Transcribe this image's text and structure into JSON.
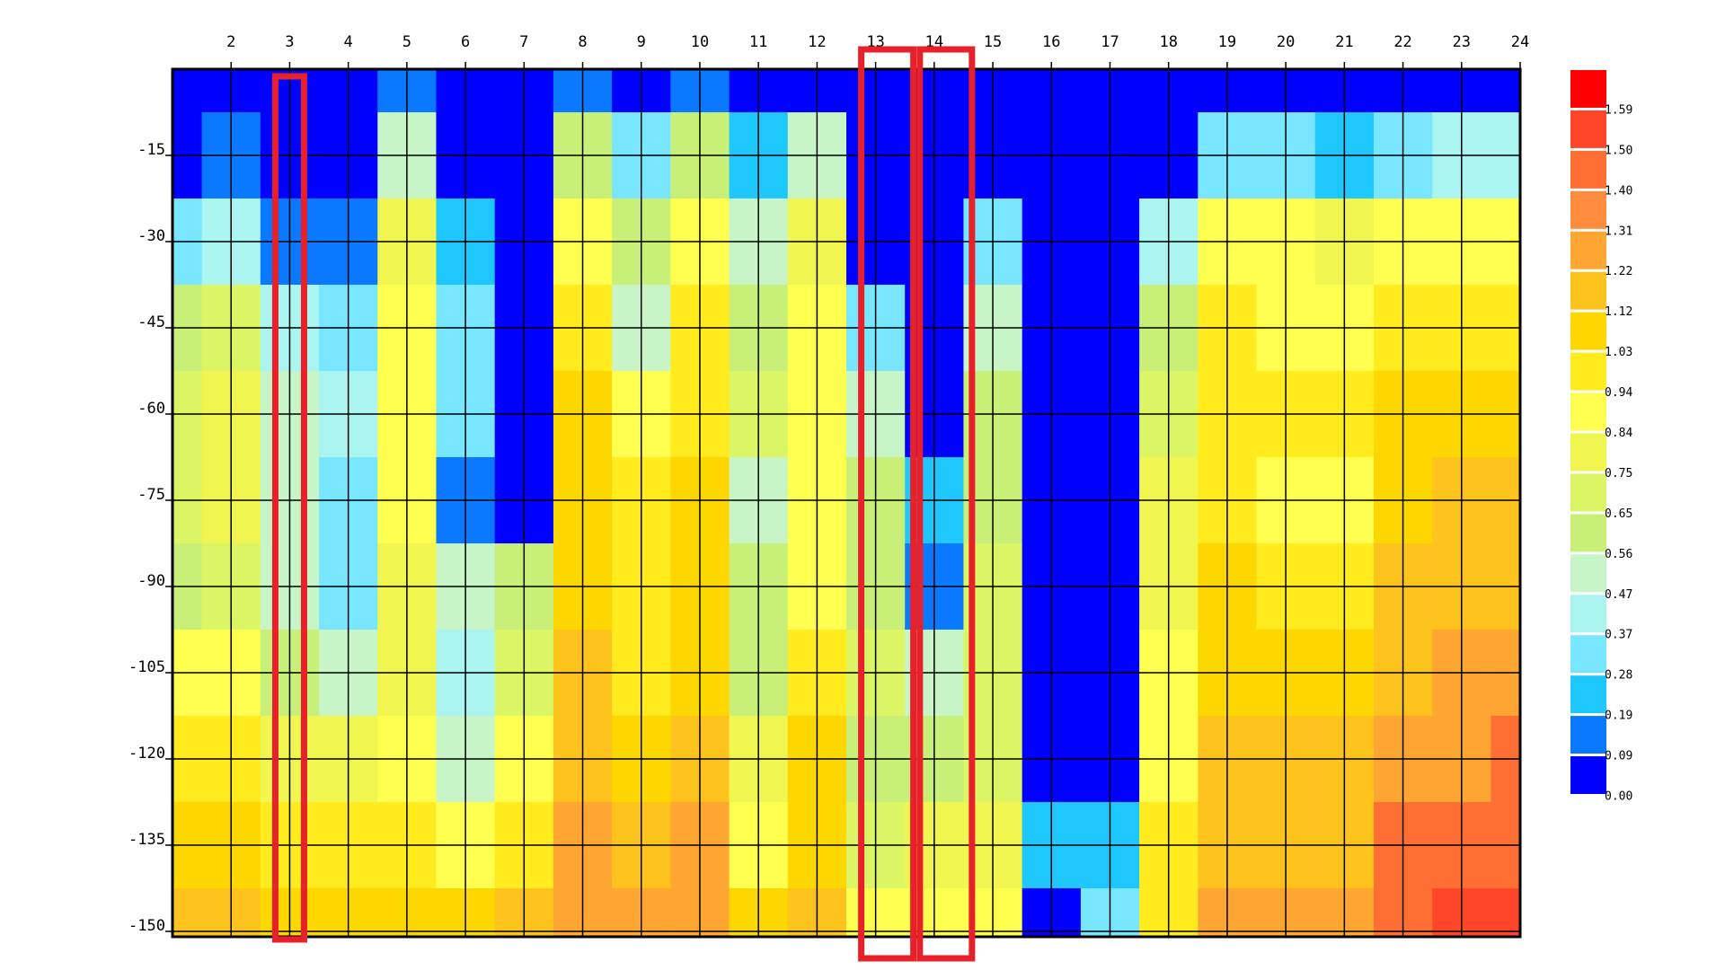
{
  "chart_data": {
    "type": "contour",
    "x": [
      1,
      2,
      3,
      4,
      5,
      6,
      7,
      8,
      9,
      10,
      11,
      12,
      13,
      14,
      15,
      16,
      17,
      18,
      19,
      20,
      21,
      22,
      23,
      24
    ],
    "y": [
      0,
      -15,
      -30,
      -45,
      -60,
      -75,
      -90,
      -105,
      -120,
      -135,
      -150
    ],
    "z": [
      [
        0,
        0,
        0,
        0,
        0.1,
        0,
        0,
        0.1,
        0,
        0.1,
        0,
        0,
        0,
        0,
        0,
        0,
        0,
        0,
        0,
        0,
        0,
        0,
        0,
        0
      ],
      [
        0,
        0.1,
        0,
        0,
        0.5,
        0,
        0,
        0.6,
        0.3,
        0.6,
        0.2,
        0.5,
        0,
        0,
        0,
        0,
        0,
        0,
        0.3,
        0.3,
        0.2,
        0.3,
        0.4,
        0.4
      ],
      [
        0.3,
        0.4,
        0.1,
        0.1,
        0.8,
        0.2,
        0,
        0.9,
        0.6,
        0.9,
        0.5,
        0.8,
        0,
        0,
        0.3,
        0,
        0,
        0.4,
        0.9,
        0.9,
        0.8,
        0.9,
        0.9,
        0.9
      ],
      [
        0.6,
        0.7,
        0.4,
        0.3,
        0.9,
        0.3,
        0,
        1.0,
        0.5,
        1.0,
        0.6,
        0.9,
        0.3,
        0,
        0.5,
        0,
        0,
        0.6,
        1.0,
        0.9,
        0.9,
        1.0,
        1.0,
        1.0
      ],
      [
        0.7,
        0.8,
        0.5,
        0.4,
        0.9,
        0.3,
        0,
        1.1,
        0.9,
        1.0,
        0.7,
        0.9,
        0.5,
        0,
        0.6,
        0,
        0,
        0.7,
        1.0,
        1.0,
        1.0,
        1.1,
        1.1,
        1.1
      ],
      [
        0.7,
        0.8,
        0.5,
        0.3,
        0.9,
        0.1,
        0,
        1.1,
        1.0,
        1.1,
        0.5,
        0.9,
        0.6,
        0.2,
        0.6,
        0,
        0,
        0.8,
        1.0,
        0.9,
        0.9,
        1.1,
        1.2,
        1.2
      ],
      [
        0.6,
        0.7,
        0.5,
        0.3,
        0.8,
        0.5,
        0.6,
        1.1,
        1.0,
        1.1,
        0.6,
        0.9,
        0.6,
        0.1,
        0.7,
        0,
        0,
        0.8,
        1.1,
        1.0,
        1.0,
        1.2,
        1.2,
        1.2
      ],
      [
        0.9,
        0.9,
        0.6,
        0.5,
        0.8,
        0.4,
        0.7,
        1.2,
        1.0,
        1.1,
        0.6,
        1.0,
        0.7,
        0.5,
        0.7,
        0,
        0,
        0.9,
        1.1,
        1.1,
        1.1,
        1.2,
        1.3,
        1.3
      ],
      [
        1.0,
        1.0,
        0.8,
        0.8,
        0.9,
        0.5,
        0.9,
        1.2,
        1.1,
        1.2,
        0.8,
        1.1,
        0.6,
        0.6,
        0.7,
        0,
        0,
        0.9,
        1.2,
        1.2,
        1.2,
        1.3,
        1.3,
        1.4
      ],
      [
        1.1,
        1.1,
        1.0,
        1.0,
        1.0,
        0.9,
        1.0,
        1.3,
        1.2,
        1.3,
        0.9,
        1.1,
        0.7,
        0.8,
        0.8,
        0.2,
        0.2,
        1.0,
        1.2,
        1.2,
        1.2,
        1.4,
        1.4,
        1.4
      ],
      [
        1.2,
        1.2,
        1.1,
        1.1,
        1.1,
        1.1,
        1.2,
        1.3,
        1.3,
        1.3,
        1.1,
        1.2,
        0.9,
        0.9,
        0.9,
        0,
        0.3,
        1.0,
        1.3,
        1.3,
        1.3,
        1.4,
        1.5,
        1.5
      ]
    ],
    "xlim": [
      1,
      24
    ],
    "ylim": [
      0,
      -150
    ],
    "xticks": [
      2,
      3,
      4,
      5,
      6,
      7,
      8,
      9,
      10,
      11,
      12,
      13,
      14,
      15,
      16,
      17,
      18,
      19,
      20,
      21,
      22,
      23,
      24
    ],
    "yticks": [
      -15,
      -30,
      -45,
      -60,
      -75,
      -90,
      -105,
      -120,
      -135,
      -150
    ],
    "levels": [
      {
        "value": 0,
        "label": "0.00"
      },
      0.09,
      0.19,
      0.28,
      0.37,
      0.47,
      0.56,
      0.65,
      0.75,
      0.84,
      0.94,
      1.03,
      1.12,
      1.22,
      1.31,
      {
        "value": 1.4,
        "label": "1.40"
      },
      {
        "value": 1.5,
        "label": "1.50"
      },
      1.59
    ],
    "colors": [
      "#0000ff",
      "#0a78ff",
      "#1ec8ff",
      "#78e6ff",
      "#aaf5f0",
      "#c8f5c8",
      "#c8f078",
      "#dcf564",
      "#f0f550",
      "#ffff50",
      "#ffeb1e",
      "#ffd700",
      "#ffc31e",
      "#ffa532",
      "#ff8c3c",
      "#ff6e32",
      "#ff4628",
      "#ff0000"
    ],
    "highlights": [
      3,
      13,
      14
    ],
    "highlight_color": "#e8202a"
  }
}
